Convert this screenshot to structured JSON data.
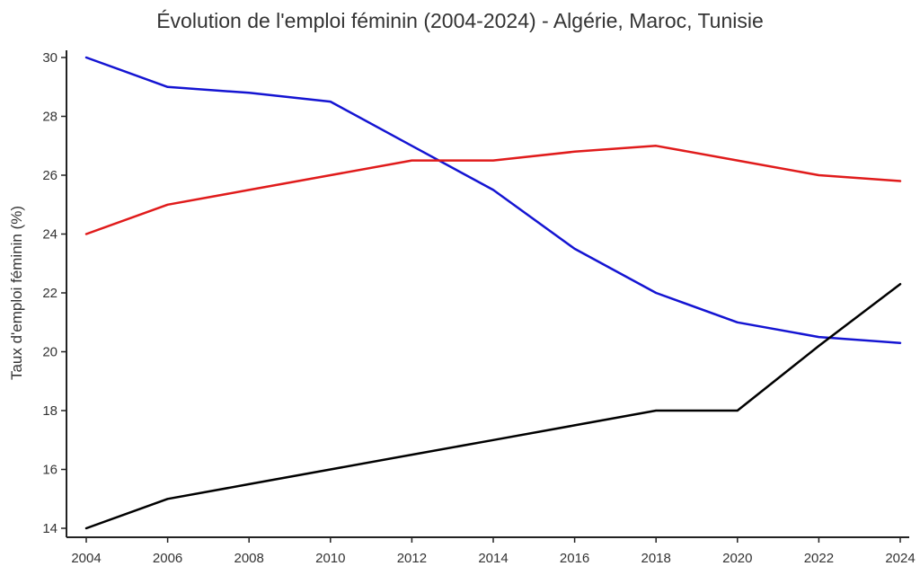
{
  "chart_data": {
    "type": "line",
    "title": "Évolution de l'emploi féminin (2004-2024) - Algérie, Maroc, Tunisie",
    "xlabel": "",
    "ylabel": "Taux d'emploi féminin (%)",
    "x": [
      2004,
      2006,
      2008,
      2010,
      2012,
      2014,
      2016,
      2018,
      2020,
      2022,
      2024
    ],
    "xlim": [
      2004,
      2024
    ],
    "ylim": [
      14,
      30
    ],
    "x_ticks": [
      "2004",
      "2006",
      "2008",
      "2010",
      "2012",
      "2014",
      "2016",
      "2018",
      "2020",
      "2022",
      "2024"
    ],
    "y_ticks": [
      "14",
      "16",
      "18",
      "20",
      "22",
      "24",
      "26",
      "28",
      "30"
    ],
    "grid": false,
    "legend": "none",
    "series": [
      {
        "color": "#1414d2",
        "values": [
          30.0,
          29.0,
          28.8,
          28.5,
          27.0,
          25.5,
          23.5,
          22.0,
          21.0,
          20.5,
          20.3
        ]
      },
      {
        "color": "#e01b1b",
        "values": [
          24.0,
          25.0,
          25.5,
          26.0,
          26.5,
          26.5,
          26.8,
          27.0,
          26.5,
          26.0,
          25.8
        ]
      },
      {
        "color": "#000000",
        "values": [
          14.0,
          15.0,
          15.5,
          16.0,
          16.5,
          17.0,
          17.5,
          18.0,
          18.0,
          20.2,
          22.3
        ]
      }
    ]
  }
}
